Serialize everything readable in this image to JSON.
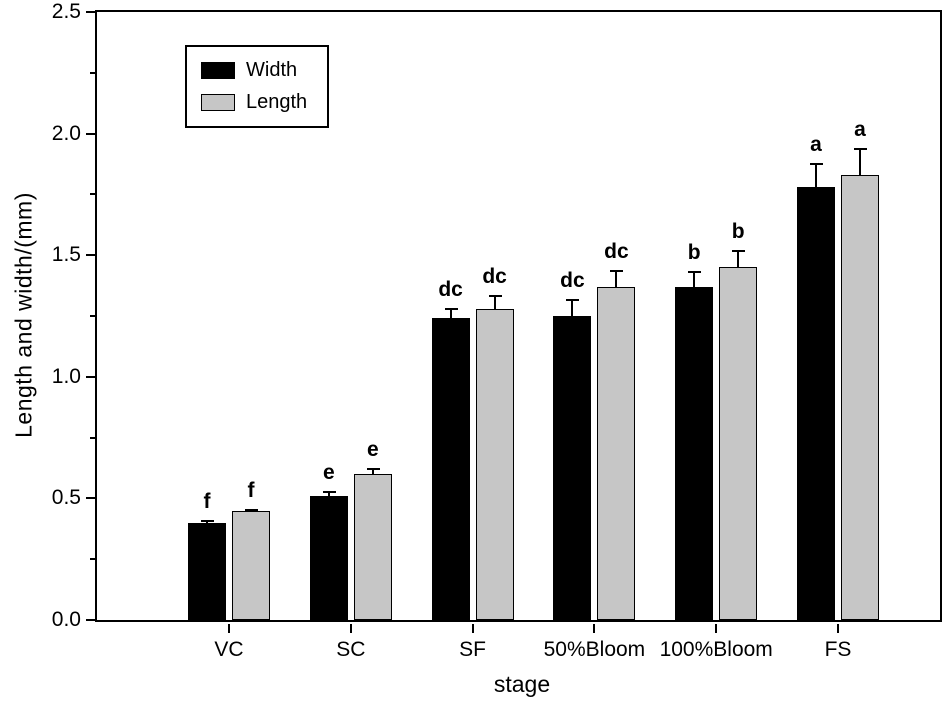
{
  "chart_data": {
    "type": "bar",
    "title": "",
    "xlabel": "stage",
    "ylabel": "Length and width/(mm)",
    "ylim": [
      0,
      2.5
    ],
    "yticks": [
      0.0,
      0.5,
      1.0,
      1.5,
      2.0,
      2.5
    ],
    "ytick_labels": [
      "0.0",
      "0.5",
      "1.0",
      "1.5",
      "2.0",
      "2.5"
    ],
    "minor_tick_step": 0.25,
    "grid": false,
    "legend_position": "top-left",
    "categories": [
      "VC",
      "SC",
      "SF",
      "50%Bloom",
      "100%Bloom",
      "FS"
    ],
    "series": [
      {
        "name": "Width",
        "color": "#000000",
        "values": [
          0.4,
          0.51,
          1.24,
          1.25,
          1.37,
          1.78
        ],
        "errors": [
          0.012,
          0.02,
          0.045,
          0.07,
          0.065,
          0.1
        ],
        "letters": [
          "f",
          "e",
          "dc",
          "dc",
          "b",
          "a"
        ]
      },
      {
        "name": "Length",
        "color": "#c6c6c6",
        "values": [
          0.45,
          0.6,
          1.28,
          1.37,
          1.45,
          1.83
        ],
        "errors": [
          0.008,
          0.025,
          0.055,
          0.07,
          0.07,
          0.11
        ],
        "letters": [
          "f",
          "e",
          "dc",
          "dc",
          "b",
          "a"
        ]
      }
    ]
  }
}
